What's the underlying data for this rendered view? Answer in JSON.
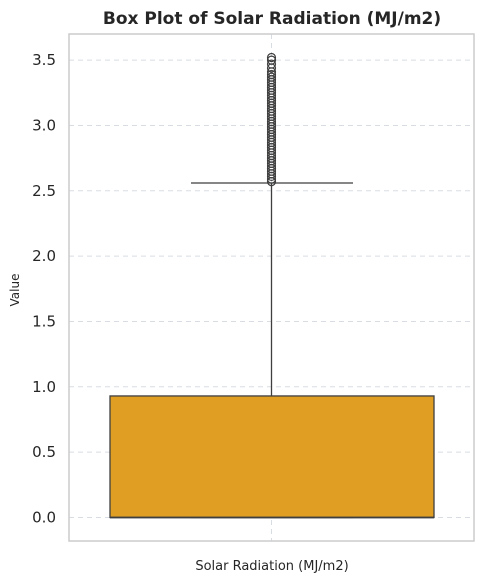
{
  "chart_data": {
    "type": "box",
    "title": "Box Plot of Solar Radiation (MJ/m2)",
    "xlabel": "Solar Radiation (MJ/m2)",
    "ylabel": "Value",
    "ylim": [
      -0.18,
      3.7
    ],
    "yticks": [
      0.0,
      0.5,
      1.0,
      1.5,
      2.0,
      2.5,
      3.0,
      3.5
    ],
    "ytick_labels": [
      "0.0",
      "0.5",
      "1.0",
      "1.5",
      "2.0",
      "2.5",
      "3.0",
      "3.5"
    ],
    "grid": true,
    "box": {
      "min": 0.0,
      "q1": 0.0,
      "median": 0.0,
      "q3": 0.93,
      "whisker_high": 2.56,
      "whisker_low": 0.0,
      "fill_color": "#e09e23",
      "edge_color": "#3f3f3f"
    },
    "outliers": [
      2.57,
      2.59,
      2.61,
      2.63,
      2.65,
      2.67,
      2.69,
      2.71,
      2.73,
      2.75,
      2.77,
      2.79,
      2.81,
      2.83,
      2.85,
      2.87,
      2.89,
      2.91,
      2.93,
      2.95,
      2.97,
      2.99,
      3.01,
      3.03,
      3.05,
      3.07,
      3.09,
      3.11,
      3.13,
      3.15,
      3.17,
      3.19,
      3.21,
      3.23,
      3.25,
      3.27,
      3.29,
      3.31,
      3.33,
      3.35,
      3.37,
      3.39,
      3.41,
      3.44,
      3.47,
      3.5,
      3.52
    ],
    "colors": {
      "grid": "#d8dde3",
      "frame": "#cccccc",
      "text": "#262626"
    }
  }
}
